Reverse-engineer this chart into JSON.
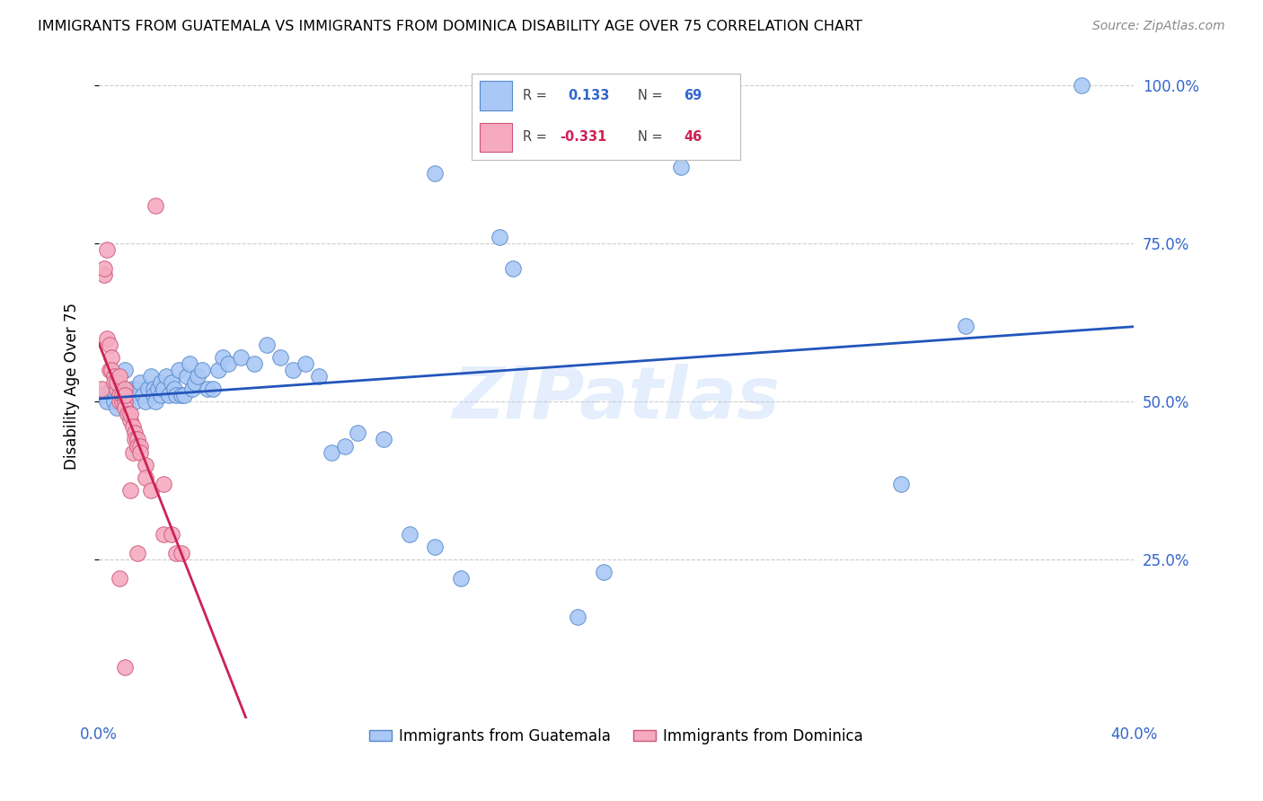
{
  "title": "IMMIGRANTS FROM GUATEMALA VS IMMIGRANTS FROM DOMINICA DISABILITY AGE OVER 75 CORRELATION CHART",
  "source": "Source: ZipAtlas.com",
  "ylabel": "Disability Age Over 75",
  "right_yticks": [
    "100.0%",
    "75.0%",
    "50.0%",
    "25.0%"
  ],
  "right_ytick_vals": [
    1.0,
    0.75,
    0.5,
    0.25
  ],
  "xlim": [
    0.0,
    0.4
  ],
  "ylim": [
    0.0,
    1.05
  ],
  "r_guatemala": 0.133,
  "n_guatemala": 69,
  "r_dominica": -0.331,
  "n_dominica": 46,
  "watermark": "ZIPatlas",
  "guatemala_color": "#aac8f5",
  "guatemala_edge": "#5588cc",
  "dominica_color": "#f5aac0",
  "dominica_edge": "#cc5577",
  "trendline_guatemala_color": "#2255bb",
  "trendline_dominica_color": "#cc2255",
  "trendline_dominica_dashed_color": "#ccbbcc",
  "guatemala_points": [
    [
      0.001,
      0.51
    ],
    [
      0.003,
      0.5
    ],
    [
      0.005,
      0.52
    ],
    [
      0.006,
      0.5
    ],
    [
      0.007,
      0.49
    ],
    [
      0.007,
      0.53
    ],
    [
      0.008,
      0.51
    ],
    [
      0.009,
      0.5
    ],
    [
      0.01,
      0.55
    ],
    [
      0.01,
      0.52
    ],
    [
      0.011,
      0.5
    ],
    [
      0.012,
      0.51
    ],
    [
      0.013,
      0.52
    ],
    [
      0.014,
      0.5
    ],
    [
      0.015,
      0.52
    ],
    [
      0.016,
      0.53
    ],
    [
      0.017,
      0.51
    ],
    [
      0.018,
      0.5
    ],
    [
      0.019,
      0.52
    ],
    [
      0.02,
      0.54
    ],
    [
      0.021,
      0.52
    ],
    [
      0.021,
      0.51
    ],
    [
      0.022,
      0.5
    ],
    [
      0.023,
      0.52
    ],
    [
      0.024,
      0.51
    ],
    [
      0.024,
      0.53
    ],
    [
      0.025,
      0.52
    ],
    [
      0.026,
      0.54
    ],
    [
      0.027,
      0.51
    ],
    [
      0.028,
      0.53
    ],
    [
      0.029,
      0.52
    ],
    [
      0.03,
      0.51
    ],
    [
      0.031,
      0.55
    ],
    [
      0.032,
      0.51
    ],
    [
      0.033,
      0.51
    ],
    [
      0.034,
      0.54
    ],
    [
      0.035,
      0.56
    ],
    [
      0.036,
      0.52
    ],
    [
      0.037,
      0.53
    ],
    [
      0.038,
      0.54
    ],
    [
      0.04,
      0.55
    ],
    [
      0.042,
      0.52
    ],
    [
      0.044,
      0.52
    ],
    [
      0.046,
      0.55
    ],
    [
      0.048,
      0.57
    ],
    [
      0.05,
      0.56
    ],
    [
      0.055,
      0.57
    ],
    [
      0.06,
      0.56
    ],
    [
      0.065,
      0.59
    ],
    [
      0.07,
      0.57
    ],
    [
      0.075,
      0.55
    ],
    [
      0.08,
      0.56
    ],
    [
      0.085,
      0.54
    ],
    [
      0.09,
      0.42
    ],
    [
      0.095,
      0.43
    ],
    [
      0.1,
      0.45
    ],
    [
      0.11,
      0.44
    ],
    [
      0.12,
      0.29
    ],
    [
      0.13,
      0.27
    ],
    [
      0.14,
      0.22
    ],
    [
      0.155,
      0.76
    ],
    [
      0.16,
      0.71
    ],
    [
      0.13,
      0.86
    ],
    [
      0.185,
      0.16
    ],
    [
      0.195,
      0.23
    ],
    [
      0.225,
      0.87
    ],
    [
      0.31,
      0.37
    ],
    [
      0.335,
      0.62
    ],
    [
      0.38,
      1.0
    ]
  ],
  "dominica_points": [
    [
      0.001,
      0.52
    ],
    [
      0.002,
      0.7
    ],
    [
      0.002,
      0.71
    ],
    [
      0.003,
      0.74
    ],
    [
      0.003,
      0.6
    ],
    [
      0.004,
      0.59
    ],
    [
      0.004,
      0.55
    ],
    [
      0.005,
      0.57
    ],
    [
      0.005,
      0.55
    ],
    [
      0.006,
      0.54
    ],
    [
      0.006,
      0.53
    ],
    [
      0.007,
      0.52
    ],
    [
      0.007,
      0.53
    ],
    [
      0.008,
      0.51
    ],
    [
      0.008,
      0.5
    ],
    [
      0.008,
      0.54
    ],
    [
      0.009,
      0.5
    ],
    [
      0.009,
      0.51
    ],
    [
      0.01,
      0.5
    ],
    [
      0.01,
      0.49
    ],
    [
      0.01,
      0.52
    ],
    [
      0.01,
      0.51
    ],
    [
      0.01,
      0.08
    ],
    [
      0.011,
      0.48
    ],
    [
      0.012,
      0.47
    ],
    [
      0.012,
      0.48
    ],
    [
      0.013,
      0.46
    ],
    [
      0.013,
      0.42
    ],
    [
      0.014,
      0.45
    ],
    [
      0.014,
      0.44
    ],
    [
      0.015,
      0.44
    ],
    [
      0.015,
      0.43
    ],
    [
      0.016,
      0.43
    ],
    [
      0.016,
      0.42
    ],
    [
      0.018,
      0.4
    ],
    [
      0.018,
      0.38
    ],
    [
      0.02,
      0.36
    ],
    [
      0.022,
      0.81
    ],
    [
      0.025,
      0.37
    ],
    [
      0.025,
      0.29
    ],
    [
      0.028,
      0.29
    ],
    [
      0.03,
      0.26
    ],
    [
      0.032,
      0.26
    ],
    [
      0.008,
      0.22
    ],
    [
      0.012,
      0.36
    ],
    [
      0.015,
      0.26
    ]
  ]
}
